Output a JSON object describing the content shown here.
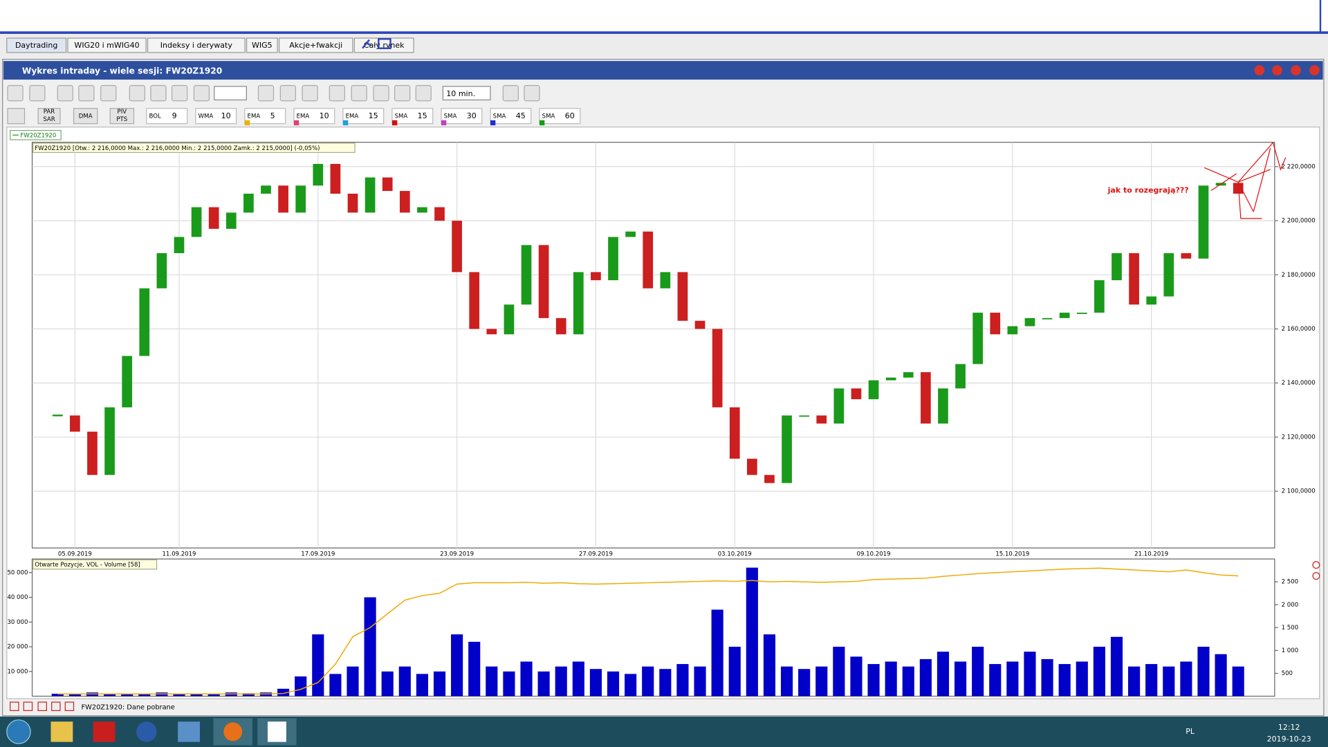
{
  "tabs": [
    "Daytrading",
    "WIG20 i mWIG40",
    "Indeksy i derywaty",
    "WIG5",
    "Akcje+fwakcji",
    "Cały rynek"
  ],
  "window_title": "Wykres intraday -  wiele sesji: FW20Z1920",
  "toolbar": {
    "interval": "10 min.",
    "buttons": [
      "PAR",
      "SAR",
      "DMA",
      "PIV",
      "PTS"
    ],
    "indicators": [
      {
        "name": "BOL",
        "value": 9
      },
      {
        "name": "WMA",
        "value": 10
      },
      {
        "name": "EMA",
        "value": 5
      },
      {
        "name": "EMA",
        "value": 10
      },
      {
        "name": "EMA",
        "value": 15
      },
      {
        "name": "SMA",
        "value": 15
      },
      {
        "name": "SMA",
        "value": 30
      },
      {
        "name": "SMA",
        "value": 45
      },
      {
        "name": "SMA",
        "value": 60
      }
    ]
  },
  "legend_tag": "FW20Z1920",
  "chart_data": [
    {
      "type": "candlestick",
      "title": "FW20Z1920 [Otw.: 2 216,0000  Max.: 2 216,0000  Min.: 2 215,0000  Zamk.: 2 215,0000] (-0,05%)",
      "annotation": "jak to rozegrają???",
      "categories": [
        null,
        "05.09.2019",
        null,
        null,
        null,
        null,
        null,
        "11.09.2019",
        null,
        null,
        null,
        null,
        null,
        null,
        null,
        "17.09.2019",
        null,
        null,
        null,
        null,
        null,
        null,
        null,
        "23.09.2019",
        null,
        null,
        null,
        null,
        null,
        null,
        null,
        "27.09.2019",
        null,
        null,
        null,
        null,
        null,
        null,
        null,
        "03.10.2019",
        null,
        null,
        null,
        null,
        null,
        null,
        null,
        "09.10.2019",
        null,
        null,
        null,
        null,
        null,
        null,
        null,
        "15.10.2019",
        null,
        null,
        null,
        null,
        null,
        null,
        null,
        "21.10.2019",
        null,
        null,
        null,
        null,
        null
      ],
      "values": [
        2128000,
        2122000,
        2106000,
        2131000,
        2150000,
        2175000,
        2188000,
        2194000,
        2205000,
        2197000,
        2203000,
        2210000,
        2213000,
        2203000,
        2213000,
        2221000,
        2210000,
        2203000,
        2216000,
        2211000,
        2203000,
        2205000,
        2200000,
        2181000,
        2160000,
        2158000,
        2169000,
        2191000,
        2164000,
        2158000,
        2181000,
        2178000,
        2194000,
        2196000,
        2175000,
        2181000,
        2163000,
        2160000,
        2131000,
        2112000,
        2106000,
        2103000,
        2128000,
        2128000,
        2125000,
        2138000,
        2134000,
        2141000,
        2142000,
        2144000,
        2125000,
        2138000,
        2147000,
        2166000,
        2158000,
        2161000,
        2164000,
        2164000,
        2166000,
        2166000,
        2178000,
        2188000,
        2169000,
        2172000,
        2188000,
        2186000,
        2213000,
        2214000,
        2210000
      ],
      "up_color": "#1a9a1a",
      "down_color": "#cc1f1f",
      "ylim": [
        2079000,
        2229000
      ],
      "yticks": [
        {
          "value": 2100000,
          "label": "2 100,0000"
        },
        {
          "value": 2120000,
          "label": "2 120,0000"
        },
        {
          "value": 2140000,
          "label": "2 140,0000"
        },
        {
          "value": 2160000,
          "label": "2 160,0000"
        },
        {
          "value": 2180000,
          "label": "2 180,0000"
        },
        {
          "value": 2200000,
          "label": "2 200,0000"
        },
        {
          "value": 2220000,
          "label": "2 220,0000"
        }
      ],
      "grid": true
    },
    {
      "type": "bar",
      "title": "Otwarte Pozycje, VOL - Volume [58]",
      "series": [
        {
          "color": "#0000c8",
          "values": [
            1000,
            1000,
            1500,
            1000,
            1000,
            1000,
            1500,
            1000,
            1000,
            1000,
            1500,
            1200,
            1500,
            3000,
            8000,
            25000,
            9000,
            12000,
            40000,
            10000,
            12000,
            9000,
            10000,
            25000,
            22000,
            12000,
            10000,
            14000,
            10000,
            12000,
            14000,
            11000,
            10000,
            9000,
            12000,
            11000,
            13000,
            12000,
            35000,
            20000,
            52000,
            25000,
            12000,
            11000,
            12000,
            20000,
            16000,
            13000,
            14000,
            12000,
            15000,
            18000,
            14000,
            20000,
            13000,
            14000,
            18000,
            15000,
            13000,
            14000,
            20000,
            24000,
            12000,
            13000,
            12000,
            14000,
            20000,
            17000,
            12000
          ]
        },
        {
          "color": "#f0a800",
          "axis": "y2",
          "values": [
            50,
            50,
            50,
            50,
            50,
            50,
            50,
            50,
            50,
            50,
            50,
            50,
            50,
            60,
            150,
            300,
            700,
            1300,
            1500,
            1800,
            2100,
            2200,
            2250,
            2450,
            2480,
            2480,
            2480,
            2490,
            2470,
            2480,
            2460,
            2450,
            2460,
            2470,
            2480,
            2490,
            2500,
            2510,
            2520,
            2510,
            2530,
            2500,
            2510,
            2500,
            2490,
            2500,
            2510,
            2550,
            2560,
            2570,
            2580,
            2620,
            2650,
            2680,
            2700,
            2720,
            2740,
            2760,
            2780,
            2790,
            2800,
            2780,
            2760,
            2740,
            2720,
            2760,
            2700,
            2650,
            2630
          ]
        }
      ],
      "ylim": [
        0,
        55500
      ],
      "yticks": [
        {
          "value": 10000,
          "label": "10 000"
        },
        {
          "value": 20000,
          "label": "20 000"
        },
        {
          "value": 30000,
          "label": "30 000"
        },
        {
          "value": 40000,
          "label": "40 000"
        },
        {
          "value": 50000,
          "label": "50 000"
        }
      ],
      "y2lim": [
        0,
        3000
      ],
      "y2ticks": [
        500,
        {
          "value": 1000,
          "label": "1 000"
        },
        {
          "value": 1500,
          "label": "1 500"
        },
        {
          "value": 2000,
          "label": "2 000"
        },
        {
          "value": 2500,
          "label": "2 500"
        }
      ]
    }
  ],
  "status": "FW20Z1920: Dane pobrane",
  "taskbar": {
    "language": "PL",
    "time": "12:12",
    "date": "2019-10-23"
  }
}
